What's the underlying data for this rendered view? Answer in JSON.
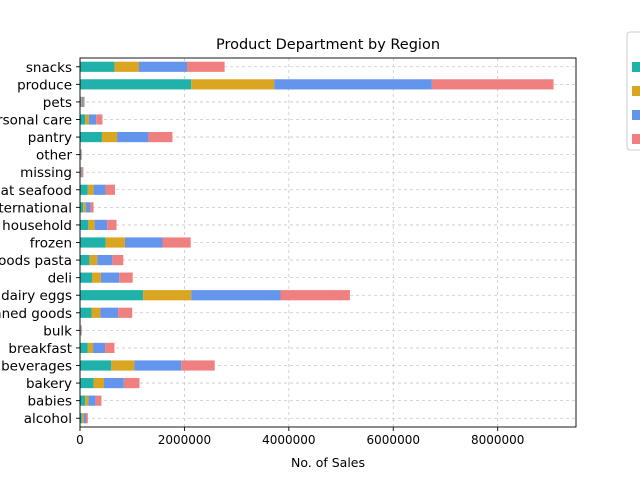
{
  "chart_data": {
    "type": "bar",
    "orientation": "horizontal",
    "stacked": true,
    "title": "Product Department by Region",
    "xlabel": "No. of Sales",
    "ylabel": "",
    "xlim": [
      0,
      9500000
    ],
    "xticks": [
      0,
      2000000,
      4000000,
      6000000,
      8000000
    ],
    "xtick_labels": [
      "0",
      "2000000",
      "4000000",
      "6000000",
      "8000000"
    ],
    "grid": true,
    "legend_position": "outside-top-right",
    "categories": [
      "snacks",
      "produce",
      "pets",
      "personal care",
      "pantry",
      "other",
      "missing",
      "meat seafood",
      "international",
      "household",
      "frozen",
      "dry goods pasta",
      "deli",
      "dairy eggs",
      "canned goods",
      "bulk",
      "breakfast",
      "beverages",
      "bakery",
      "babies",
      "alcohol"
    ],
    "series": [
      {
        "name": "",
        "color": "#20b2aa",
        "values": [
          660000,
          2130000,
          18000,
          100000,
          420000,
          8000,
          15000,
          150000,
          60000,
          160000,
          490000,
          180000,
          230000,
          1210000,
          220000,
          8000,
          150000,
          600000,
          260000,
          100000,
          35000
        ]
      },
      {
        "name": "",
        "color": "#daa520",
        "values": [
          470000,
          1590000,
          18000,
          70000,
          290000,
          7000,
          15000,
          110000,
          50000,
          120000,
          370000,
          150000,
          170000,
          920000,
          170000,
          7000,
          100000,
          440000,
          200000,
          60000,
          35000
        ]
      },
      {
        "name": "",
        "color": "#6495ed",
        "values": [
          920000,
          3020000,
          30000,
          140000,
          600000,
          10000,
          20000,
          230000,
          90000,
          240000,
          720000,
          290000,
          350000,
          1710000,
          340000,
          10000,
          230000,
          900000,
          380000,
          140000,
          45000
        ]
      },
      {
        "name": "",
        "color": "#f08080",
        "values": [
          720000,
          2330000,
          22000,
          120000,
          460000,
          10000,
          15000,
          180000,
          60000,
          180000,
          540000,
          210000,
          260000,
          1330000,
          270000,
          10000,
          180000,
          640000,
          300000,
          110000,
          35000
        ]
      }
    ]
  }
}
